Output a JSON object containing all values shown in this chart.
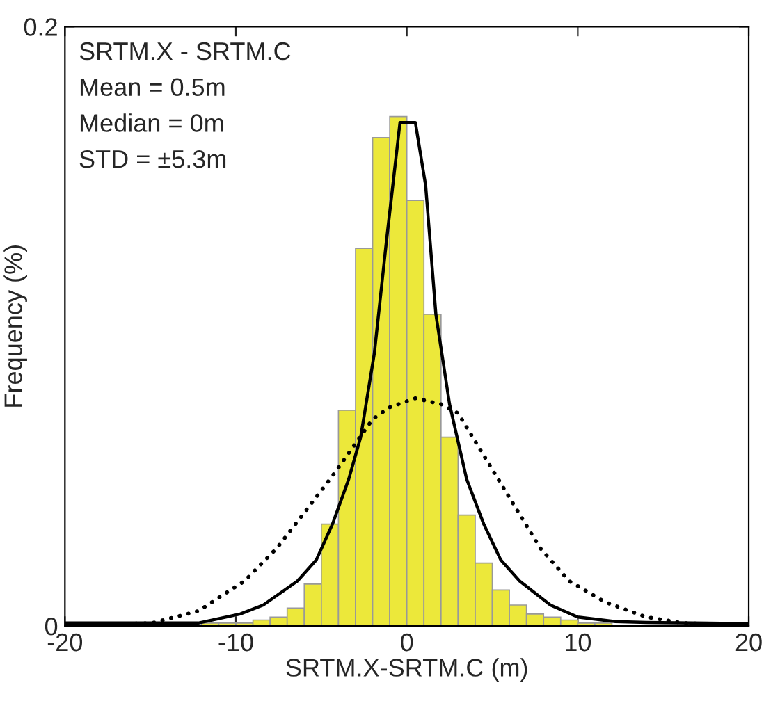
{
  "chart_data": {
    "type": "histogram",
    "xlabel": "SRTM.X-SRTM.C (m)",
    "ylabel": "Frequency (%)",
    "annotations": [
      "SRTM.X - SRTM.C",
      "Mean = 0.5m",
      "Median = 0m",
      "STD = ±5.3m"
    ],
    "bins": [
      -12,
      -11,
      -10,
      -9,
      -8,
      -7,
      -6,
      -5,
      -4,
      -3,
      -2,
      -1,
      0,
      1,
      2,
      3,
      4,
      5,
      6,
      7,
      8,
      9,
      10,
      11,
      12
    ],
    "values": [
      0.001,
      0.001,
      0.001,
      0.002,
      0.003,
      0.006,
      0.014,
      0.034,
      0.072,
      0.126,
      0.163,
      0.17,
      0.142,
      0.104,
      0.063,
      0.037,
      0.021,
      0.012,
      0.007,
      0.004,
      0.003,
      0.002,
      0.001,
      0.001
    ],
    "color": "#ece83a",
    "series": [
      {
        "type": "line",
        "line_style": "solid",
        "color": "#000000",
        "x": [
          -20,
          -15.4,
          -12.2,
          -9.75,
          -8.4,
          -6.4,
          -5.3,
          -4.35,
          -3.4,
          -2.7,
          -1.9,
          -1.2,
          -0.4,
          0.5,
          1.1,
          1.7,
          2.5,
          3.5,
          4.5,
          5.5,
          6.6,
          8.4,
          10,
          12.2,
          14,
          20
        ],
        "values": [
          0.001,
          0.001,
          0.001,
          0.004,
          0.007,
          0.015,
          0.022,
          0.034,
          0.049,
          0.063,
          0.091,
          0.128,
          0.168,
          0.168,
          0.147,
          0.104,
          0.074,
          0.049,
          0.034,
          0.022,
          0.015,
          0.007,
          0.003,
          0.0015,
          0.0012,
          0.0008
        ]
      },
      {
        "type": "line",
        "line_style": "dotted",
        "color": "#000000",
        "x": [
          -20,
          -14.9,
          -12.2,
          -9.5,
          -7.6,
          -5.7,
          -4.1,
          -2,
          -1,
          0.5,
          2,
          3,
          4.6,
          6.2,
          7.8,
          9.5,
          11.6,
          14,
          16.2,
          20
        ],
        "values": [
          0.0,
          0.001,
          0.005,
          0.015,
          0.026,
          0.04,
          0.052,
          0.069,
          0.073,
          0.076,
          0.074,
          0.071,
          0.056,
          0.041,
          0.026,
          0.015,
          0.008,
          0.003,
          0.001,
          0.0
        ]
      }
    ],
    "xlim": [
      -20,
      20
    ],
    "xticks": [
      -20,
      -10,
      0,
      10,
      20
    ],
    "ylim": [
      0,
      0.2
    ],
    "yticks": [
      0,
      0.2
    ],
    "grid": false,
    "legend": false
  }
}
